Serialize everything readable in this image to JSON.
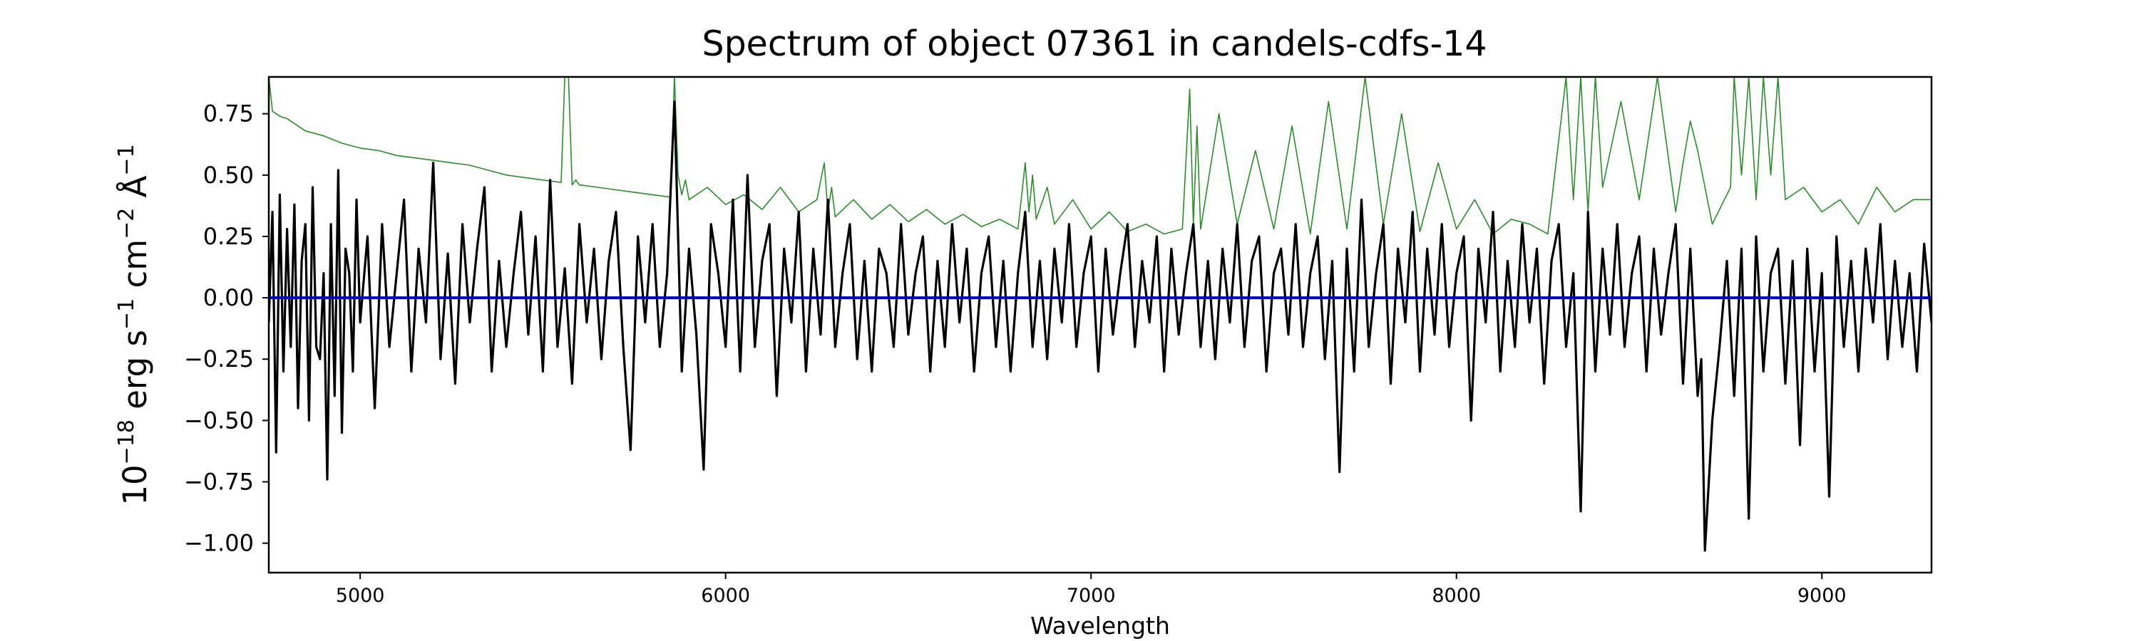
{
  "chart_data": {
    "type": "line",
    "title": "Spectrum of object 07361 in candels-cdfs-14",
    "xlabel": "Wavelength",
    "ylabel_parts": {
      "base": "10",
      "exp1": "−18",
      "erg": " erg s",
      "exp2": "−1",
      "cm": " cm",
      "exp3": "−2",
      "ang": " Å",
      "exp4": "−1"
    },
    "xlim": [
      4750,
      9300
    ],
    "ylim": [
      -1.12,
      0.9
    ],
    "xticks": [
      {
        "value": 5000,
        "label": "5000"
      },
      {
        "value": 6000,
        "label": "6000"
      },
      {
        "value": 7000,
        "label": "7000"
      },
      {
        "value": 8000,
        "label": "8000"
      },
      {
        "value": 9000,
        "label": "9000"
      }
    ],
    "yticks": [
      {
        "value": 0.75,
        "label": "0.75"
      },
      {
        "value": 0.5,
        "label": "0.50"
      },
      {
        "value": 0.25,
        "label": "0.25"
      },
      {
        "value": 0.0,
        "label": "0.00"
      },
      {
        "value": -0.25,
        "label": "−0.25"
      },
      {
        "value": -0.5,
        "label": "−0.50"
      },
      {
        "value": -0.75,
        "label": "−0.75"
      },
      {
        "value": -1.0,
        "label": "−1.00"
      }
    ],
    "grid": false,
    "series": [
      {
        "key": "flux",
        "color": "#000000",
        "x": [
          4750,
          4760,
          4770,
          4780,
          4790,
          4800,
          4810,
          4820,
          4830,
          4840,
          4850,
          4860,
          4870,
          4880,
          4890,
          4900,
          4910,
          4920,
          4930,
          4940,
          4950,
          4960,
          4970,
          4980,
          4990,
          5000,
          5020,
          5040,
          5060,
          5080,
          5100,
          5120,
          5140,
          5160,
          5180,
          5200,
          5220,
          5240,
          5260,
          5280,
          5300,
          5320,
          5340,
          5360,
          5380,
          5400,
          5420,
          5440,
          5460,
          5480,
          5500,
          5520,
          5540,
          5560,
          5580,
          5600,
          5620,
          5640,
          5660,
          5680,
          5700,
          5720,
          5740,
          5760,
          5780,
          5800,
          5820,
          5840,
          5860,
          5880,
          5900,
          5920,
          5940,
          5960,
          5980,
          6000,
          6020,
          6040,
          6060,
          6080,
          6100,
          6120,
          6140,
          6160,
          6180,
          6200,
          6220,
          6240,
          6260,
          6280,
          6300,
          6320,
          6340,
          6360,
          6380,
          6400,
          6420,
          6440,
          6460,
          6480,
          6500,
          6520,
          6540,
          6560,
          6580,
          6600,
          6620,
          6640,
          6660,
          6680,
          6700,
          6720,
          6740,
          6760,
          6780,
          6800,
          6820,
          6840,
          6860,
          6880,
          6900,
          6920,
          6940,
          6960,
          6980,
          7000,
          7020,
          7040,
          7060,
          7080,
          7100,
          7120,
          7140,
          7160,
          7180,
          7200,
          7220,
          7240,
          7260,
          7280,
          7300,
          7320,
          7340,
          7360,
          7380,
          7400,
          7420,
          7440,
          7460,
          7480,
          7500,
          7520,
          7540,
          7560,
          7580,
          7600,
          7620,
          7640,
          7660,
          7680,
          7700,
          7720,
          7740,
          7760,
          7780,
          7800,
          7820,
          7840,
          7860,
          7880,
          7900,
          7920,
          7940,
          7960,
          7980,
          8000,
          8020,
          8040,
          8060,
          8080,
          8100,
          8120,
          8140,
          8160,
          8180,
          8200,
          8220,
          8240,
          8260,
          8280,
          8300,
          8320,
          8340,
          8360,
          8380,
          8400,
          8420,
          8440,
          8460,
          8480,
          8500,
          8520,
          8540,
          8560,
          8580,
          8600,
          8620,
          8640,
          8660,
          8670,
          8680,
          8700,
          8720,
          8740,
          8760,
          8780,
          8800,
          8820,
          8840,
          8860,
          8880,
          8900,
          8920,
          8940,
          8960,
          8980,
          9000,
          9020,
          9040,
          9060,
          9080,
          9100,
          9120,
          9140,
          9160,
          9180,
          9200,
          9220,
          9240,
          9260,
          9280,
          9300
        ],
        "y": [
          -0.1,
          0.35,
          -0.63,
          0.42,
          -0.3,
          0.28,
          -0.2,
          0.38,
          -0.45,
          0.15,
          0.3,
          -0.5,
          0.45,
          -0.2,
          -0.25,
          0.1,
          -0.74,
          0.3,
          -0.4,
          0.52,
          -0.55,
          0.2,
          0.1,
          -0.3,
          0.4,
          -0.1,
          0.25,
          -0.45,
          0.3,
          -0.2,
          0.1,
          0.4,
          -0.3,
          0.2,
          -0.1,
          0.55,
          -0.25,
          0.18,
          -0.35,
          0.3,
          -0.1,
          0.2,
          0.45,
          -0.3,
          0.15,
          -0.2,
          0.1,
          0.35,
          -0.15,
          0.25,
          -0.3,
          0.48,
          -0.2,
          0.12,
          -0.35,
          0.3,
          -0.1,
          0.2,
          -0.25,
          0.15,
          0.35,
          -0.2,
          -0.62,
          0.25,
          -0.1,
          0.3,
          -0.2,
          0.1,
          0.8,
          -0.3,
          0.2,
          -0.15,
          -0.7,
          0.3,
          0.1,
          -0.2,
          0.4,
          -0.3,
          0.5,
          -0.2,
          0.15,
          0.3,
          -0.4,
          0.2,
          -0.1,
          0.35,
          -0.3,
          0.2,
          -0.15,
          0.4,
          -0.2,
          0.1,
          0.3,
          -0.25,
          0.15,
          -0.3,
          0.2,
          0.1,
          -0.2,
          0.3,
          -0.15,
          0.1,
          0.25,
          -0.3,
          0.15,
          -0.2,
          0.3,
          -0.1,
          0.2,
          -0.3,
          0.1,
          0.25,
          -0.2,
          0.15,
          -0.3,
          0.1,
          0.35,
          -0.2,
          0.15,
          -0.25,
          0.2,
          -0.1,
          0.3,
          -0.2,
          0.1,
          0.25,
          -0.3,
          0.2,
          -0.15,
          0.1,
          0.3,
          -0.2,
          0.15,
          -0.1,
          0.25,
          -0.3,
          0.2,
          -0.15,
          0.1,
          0.3,
          -0.2,
          0.15,
          -0.25,
          0.2,
          -0.1,
          0.3,
          -0.2,
          0.15,
          0.25,
          -0.3,
          0.1,
          0.2,
          -0.15,
          0.3,
          -0.2,
          0.1,
          0.25,
          -0.25,
          0.15,
          -0.71,
          0.2,
          -0.3,
          0.4,
          -0.2,
          0.1,
          0.3,
          -0.35,
          0.2,
          -0.1,
          0.35,
          -0.3,
          0.2,
          -0.15,
          0.3,
          -0.2,
          0.1,
          0.25,
          -0.5,
          0.2,
          -0.1,
          0.35,
          -0.3,
          0.15,
          -0.2,
          0.3,
          -0.1,
          0.2,
          -0.35,
          0.15,
          0.3,
          -0.2,
          0.1,
          -0.87,
          0.35,
          -0.3,
          0.2,
          -0.15,
          0.3,
          -0.2,
          0.1,
          0.25,
          -0.3,
          0.2,
          -0.15,
          0.1,
          0.3,
          -0.35,
          0.2,
          -0.4,
          -0.25,
          -1.03,
          -0.5,
          -0.2,
          0.15,
          -0.4,
          0.2,
          -0.9,
          0.25,
          -0.3,
          0.1,
          0.2,
          -0.35,
          0.15,
          -0.6,
          0.2,
          -0.3,
          0.1,
          -0.81,
          0.25,
          -0.2,
          0.15,
          -0.3,
          0.2,
          -0.1,
          0.3,
          -0.25,
          0.15,
          -0.2,
          0.1,
          -0.3,
          0.22,
          -0.1
        ]
      },
      {
        "key": "noise",
        "color": "#2e8b2e",
        "x": [
          4750,
          4760,
          4780,
          4800,
          4850,
          4900,
          4950,
          5000,
          5050,
          5100,
          5150,
          5200,
          5250,
          5300,
          5350,
          5400,
          5450,
          5500,
          5550,
          5560,
          5570,
          5580,
          5590,
          5600,
          5650,
          5700,
          5750,
          5800,
          5850,
          5860,
          5870,
          5880,
          5890,
          5900,
          5950,
          6000,
          6050,
          6100,
          6150,
          6200,
          6250,
          6270,
          6280,
          6290,
          6300,
          6350,
          6400,
          6450,
          6500,
          6550,
          6600,
          6650,
          6700,
          6750,
          6800,
          6820,
          6830,
          6840,
          6850,
          6880,
          6900,
          6950,
          7000,
          7050,
          7100,
          7150,
          7200,
          7250,
          7270,
          7280,
          7290,
          7300,
          7350,
          7400,
          7450,
          7500,
          7550,
          7600,
          7650,
          7700,
          7750,
          7800,
          7850,
          7900,
          7950,
          8000,
          8050,
          8100,
          8150,
          8200,
          8250,
          8300,
          8320,
          8340,
          8360,
          8380,
          8400,
          8450,
          8500,
          8550,
          8600,
          8620,
          8640,
          8660,
          8700,
          8750,
          8760,
          8780,
          8800,
          8820,
          8840,
          8860,
          8880,
          8900,
          8950,
          9000,
          9050,
          9100,
          9150,
          9200,
          9250,
          9300
        ],
        "y": [
          0.9,
          0.76,
          0.74,
          0.73,
          0.68,
          0.66,
          0.63,
          0.61,
          0.6,
          0.58,
          0.57,
          0.56,
          0.55,
          0.54,
          0.52,
          0.5,
          0.49,
          0.48,
          0.47,
          0.9,
          0.9,
          0.46,
          0.48,
          0.46,
          0.45,
          0.44,
          0.43,
          0.42,
          0.41,
          0.9,
          0.5,
          0.42,
          0.48,
          0.4,
          0.45,
          0.38,
          0.42,
          0.36,
          0.45,
          0.35,
          0.4,
          0.55,
          0.35,
          0.45,
          0.33,
          0.4,
          0.32,
          0.38,
          0.31,
          0.36,
          0.3,
          0.34,
          0.29,
          0.32,
          0.28,
          0.55,
          0.35,
          0.5,
          0.32,
          0.45,
          0.3,
          0.4,
          0.28,
          0.35,
          0.27,
          0.3,
          0.26,
          0.28,
          0.85,
          0.3,
          0.7,
          0.28,
          0.75,
          0.3,
          0.6,
          0.28,
          0.7,
          0.26,
          0.8,
          0.28,
          0.9,
          0.3,
          0.75,
          0.27,
          0.55,
          0.28,
          0.4,
          0.26,
          0.32,
          0.3,
          0.26,
          0.9,
          0.4,
          0.9,
          0.35,
          0.9,
          0.45,
          0.8,
          0.4,
          0.9,
          0.35,
          0.55,
          0.72,
          0.6,
          0.3,
          0.45,
          0.9,
          0.5,
          0.9,
          0.4,
          0.9,
          0.5,
          0.9,
          0.4,
          0.45,
          0.35,
          0.4,
          0.3,
          0.45,
          0.35,
          0.4,
          0.4
        ]
      },
      {
        "key": "zero-model",
        "color": "#0000cc",
        "x": [
          4750,
          9300
        ],
        "y": [
          0.0,
          0.0
        ]
      }
    ]
  }
}
